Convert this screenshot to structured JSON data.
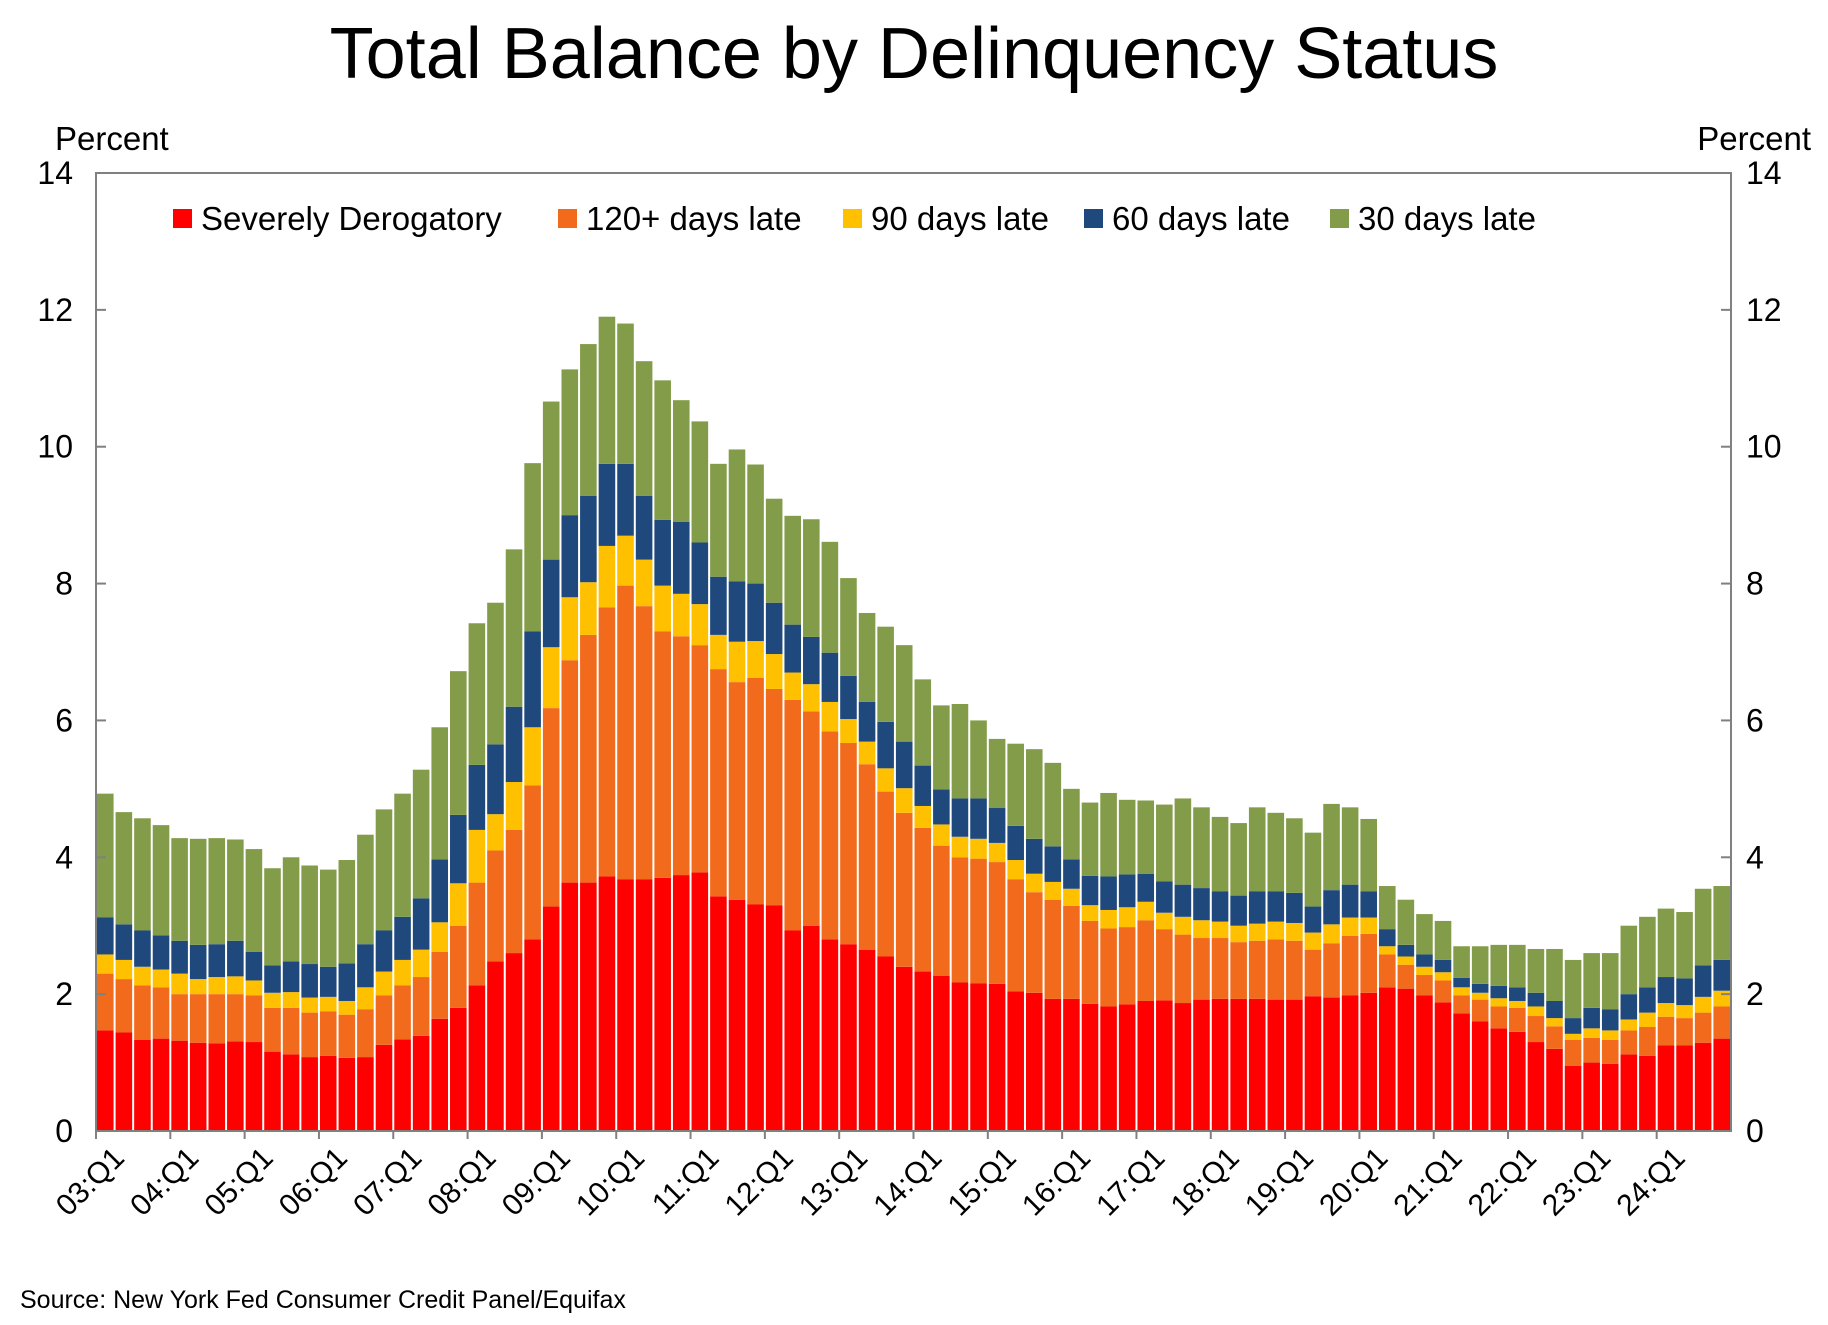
{
  "chart_data": {
    "type": "bar",
    "stacked": true,
    "title": "Total Balance by Delinquency Status",
    "ylabel_left": "Percent",
    "ylabel_right": "Percent",
    "ylim": [
      0,
      14
    ],
    "yticks": [
      0,
      2,
      4,
      6,
      8,
      10,
      12,
      14
    ],
    "grid": false,
    "legend_position": "top",
    "source": "Source: New York Fed Consumer Credit Panel/Equifax",
    "x_tick_labels": [
      "03:Q1",
      "04:Q1",
      "05:Q1",
      "06:Q1",
      "07:Q1",
      "08:Q1",
      "09:Q1",
      "10:Q1",
      "11:Q1",
      "12:Q1",
      "13:Q1",
      "14:Q1",
      "15:Q1",
      "16:Q1",
      "17:Q1",
      "18:Q1",
      "19:Q1",
      "20:Q1",
      "21:Q1",
      "22:Q1",
      "23:Q1",
      "24:Q1"
    ],
    "quarters_per_year": 4,
    "series": [
      {
        "name": "Severely Derogatory",
        "color": "#FF0000",
        "values": [
          1.47,
          1.44,
          1.33,
          1.35,
          1.32,
          1.29,
          1.28,
          1.31,
          1.3,
          1.16,
          1.12,
          1.08,
          1.1,
          1.07,
          1.08,
          1.26,
          1.34,
          1.39,
          1.64,
          1.8,
          2.13,
          2.48,
          2.6,
          2.8,
          3.28,
          3.63,
          3.63,
          3.72,
          3.68,
          3.68,
          3.7,
          3.74,
          3.78,
          3.43,
          3.38,
          3.31,
          3.3,
          2.93,
          3.0,
          2.8,
          2.73,
          2.65,
          2.55,
          2.4,
          2.33,
          2.27,
          2.17,
          2.16,
          2.15,
          2.04,
          2.02,
          1.93,
          1.93,
          1.86,
          1.82,
          1.85,
          1.9,
          1.91,
          1.87,
          1.92,
          1.93,
          1.93,
          1.93,
          1.92,
          1.92,
          1.97,
          1.95,
          1.98,
          2.02,
          2.1,
          2.08,
          1.98,
          1.88,
          1.72,
          1.6,
          1.5,
          1.45,
          1.3,
          1.2,
          0.95,
          1.0,
          0.98,
          1.12,
          1.1,
          1.25,
          1.25,
          1.29,
          1.35
        ]
      },
      {
        "name": "120+ days late",
        "color": "#F26A1B",
        "values": [
          0.83,
          0.78,
          0.8,
          0.75,
          0.68,
          0.71,
          0.72,
          0.69,
          0.68,
          0.64,
          0.68,
          0.65,
          0.65,
          0.63,
          0.7,
          0.72,
          0.79,
          0.86,
          0.98,
          1.2,
          1.5,
          1.62,
          1.8,
          2.25,
          2.9,
          3.25,
          3.62,
          3.93,
          4.29,
          3.99,
          3.6,
          3.49,
          3.32,
          3.32,
          3.18,
          3.31,
          3.16,
          3.37,
          3.13,
          3.04,
          2.94,
          2.71,
          2.41,
          2.25,
          2.1,
          1.9,
          1.83,
          1.82,
          1.78,
          1.64,
          1.47,
          1.45,
          1.36,
          1.21,
          1.14,
          1.13,
          1.18,
          1.04,
          1.0,
          0.9,
          0.89,
          0.83,
          0.85,
          0.88,
          0.86,
          0.68,
          0.79,
          0.87,
          0.86,
          0.48,
          0.35,
          0.3,
          0.32,
          0.26,
          0.32,
          0.32,
          0.35,
          0.38,
          0.33,
          0.38,
          0.36,
          0.35,
          0.35,
          0.42,
          0.42,
          0.4,
          0.44,
          0.47
        ]
      },
      {
        "name": "90 days late",
        "color": "#FFC000",
        "values": [
          0.28,
          0.28,
          0.27,
          0.26,
          0.3,
          0.22,
          0.25,
          0.26,
          0.22,
          0.22,
          0.23,
          0.22,
          0.21,
          0.2,
          0.32,
          0.35,
          0.37,
          0.4,
          0.43,
          0.62,
          0.77,
          0.53,
          0.7,
          0.85,
          0.89,
          0.92,
          0.77,
          0.9,
          0.73,
          0.68,
          0.67,
          0.62,
          0.6,
          0.5,
          0.59,
          0.54,
          0.51,
          0.4,
          0.4,
          0.43,
          0.35,
          0.33,
          0.34,
          0.36,
          0.32,
          0.31,
          0.3,
          0.29,
          0.28,
          0.28,
          0.27,
          0.26,
          0.25,
          0.23,
          0.27,
          0.29,
          0.27,
          0.24,
          0.26,
          0.26,
          0.24,
          0.24,
          0.25,
          0.26,
          0.26,
          0.25,
          0.28,
          0.27,
          0.24,
          0.12,
          0.12,
          0.12,
          0.12,
          0.12,
          0.1,
          0.12,
          0.1,
          0.14,
          0.12,
          0.09,
          0.14,
          0.14,
          0.16,
          0.21,
          0.2,
          0.19,
          0.23,
          0.23
        ]
      },
      {
        "name": "60 days late",
        "color": "#1F497D",
        "values": [
          0.54,
          0.52,
          0.53,
          0.5,
          0.48,
          0.5,
          0.48,
          0.52,
          0.42,
          0.4,
          0.45,
          0.49,
          0.44,
          0.55,
          0.63,
          0.6,
          0.63,
          0.75,
          0.92,
          1.0,
          0.95,
          1.02,
          1.1,
          1.4,
          1.28,
          1.2,
          1.26,
          1.2,
          1.05,
          0.93,
          0.96,
          1.05,
          0.9,
          0.85,
          0.88,
          0.84,
          0.75,
          0.7,
          0.69,
          0.72,
          0.63,
          0.58,
          0.68,
          0.68,
          0.59,
          0.51,
          0.56,
          0.59,
          0.51,
          0.5,
          0.51,
          0.52,
          0.43,
          0.43,
          0.49,
          0.48,
          0.41,
          0.46,
          0.47,
          0.47,
          0.44,
          0.44,
          0.47,
          0.44,
          0.44,
          0.38,
          0.5,
          0.48,
          0.38,
          0.25,
          0.17,
          0.18,
          0.18,
          0.14,
          0.13,
          0.18,
          0.2,
          0.2,
          0.25,
          0.23,
          0.3,
          0.31,
          0.37,
          0.37,
          0.38,
          0.39,
          0.46,
          0.45
        ]
      },
      {
        "name": "30 days late",
        "color": "#839C49",
        "values": [
          1.81,
          1.64,
          1.64,
          1.61,
          1.5,
          1.55,
          1.55,
          1.48,
          1.5,
          1.42,
          1.52,
          1.44,
          1.42,
          1.51,
          1.6,
          1.77,
          1.8,
          1.88,
          1.93,
          2.1,
          2.07,
          2.07,
          2.3,
          2.46,
          2.31,
          2.13,
          2.22,
          2.15,
          2.05,
          1.97,
          2.04,
          1.78,
          1.77,
          1.65,
          1.93,
          1.74,
          1.52,
          1.59,
          1.72,
          1.62,
          1.43,
          1.3,
          1.39,
          1.41,
          1.26,
          1.23,
          1.38,
          1.14,
          1.01,
          1.2,
          1.31,
          1.22,
          1.03,
          1.07,
          1.22,
          1.09,
          1.07,
          1.12,
          1.26,
          1.18,
          1.09,
          1.06,
          1.23,
          1.15,
          1.09,
          1.08,
          1.26,
          1.13,
          1.06,
          0.63,
          0.66,
          0.59,
          0.57,
          0.46,
          0.55,
          0.6,
          0.62,
          0.64,
          0.76,
          0.85,
          0.8,
          0.82,
          1.0,
          1.03,
          1.0,
          0.97,
          1.12,
          1.08
        ]
      }
    ]
  }
}
